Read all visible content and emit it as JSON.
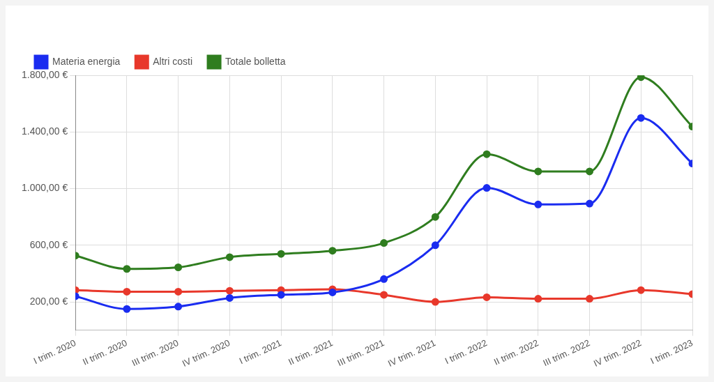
{
  "chart_data": {
    "type": "line",
    "categories": [
      "I trim. 2020",
      "II trim. 2020",
      "III trim. 2020",
      "IV trim. 2020",
      "I trim. 2021",
      "II trim. 2021",
      "III trim. 2021",
      "IV trim. 2021",
      "I trim. 2022",
      "II trim. 2022",
      "III trim. 2022",
      "IV trim. 2022",
      "I trim. 2023"
    ],
    "series": [
      {
        "name": "Materia energia",
        "color": "#1a2cf0",
        "marker": "circle",
        "line_style": "solid",
        "values": [
          240,
          150,
          167,
          228,
          250,
          267,
          361,
          600,
          1005,
          888,
          894,
          1499,
          1177
        ]
      },
      {
        "name": "Altri costi",
        "color": "#e8382b",
        "marker": "circle",
        "line_style": "solid",
        "values": [
          283,
          272,
          272,
          278,
          283,
          289,
          250,
          200,
          233,
          222,
          222,
          283,
          255
        ]
      },
      {
        "name": "Totale bolletta",
        "color": "#2f7d1f",
        "marker": "circle",
        "line_style": "solid",
        "values": [
          527,
          433,
          444,
          516,
          539,
          561,
          616,
          800,
          1243,
          1121,
          1121,
          1787,
          1438
        ]
      }
    ],
    "ylim": [
      0,
      1800
    ],
    "yticks": [
      {
        "value": 200,
        "label": "200,00 €"
      },
      {
        "value": 600,
        "label": "600,00 €"
      },
      {
        "value": 1000,
        "label": "1.000,00 €"
      },
      {
        "value": 1400,
        "label": "1.400,00 €"
      },
      {
        "value": 1800,
        "label": "1.800,00 €"
      }
    ],
    "grid": true,
    "legend": "top-left"
  }
}
